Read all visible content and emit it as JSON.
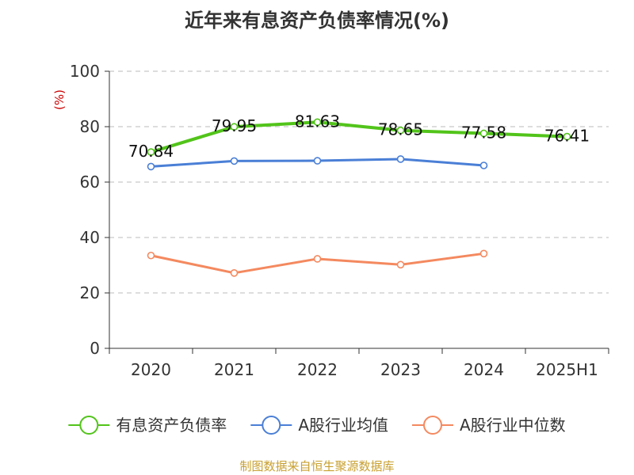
{
  "colors": {
    "series": [
      "#52c41a",
      "#4a7fd6",
      "#f4895f"
    ],
    "grid": "#bbbbbb",
    "axis": "#333333",
    "source": "#c8a030"
  },
  "source_text": "制图数据来自恒生聚源数据库",
  "chart_data": {
    "type": "line",
    "title": "近年来有息资产负债率情况(%)",
    "unit_label": "(%)",
    "xlabel": "",
    "ylabel": "",
    "categories": [
      "2020",
      "2021",
      "2022",
      "2023",
      "2024",
      "2025H1"
    ],
    "ylim": [
      0,
      100
    ],
    "yticks": [
      0,
      20,
      40,
      60,
      80,
      100
    ],
    "grid": true,
    "legend_position": "bottom",
    "series": [
      {
        "name": "有息资产负债率",
        "values": [
          70.84,
          79.95,
          81.63,
          78.65,
          77.58,
          76.41
        ],
        "labels": [
          "70.84",
          "79.95",
          "81.63",
          "78.65",
          "77.58",
          "76.41"
        ]
      },
      {
        "name": "A股行业均值",
        "values": [
          65.6,
          67.6,
          67.7,
          68.3,
          66.0,
          null
        ]
      },
      {
        "name": "A股行业中位数",
        "values": [
          33.5,
          27.2,
          32.3,
          30.2,
          34.2,
          null
        ]
      }
    ]
  }
}
